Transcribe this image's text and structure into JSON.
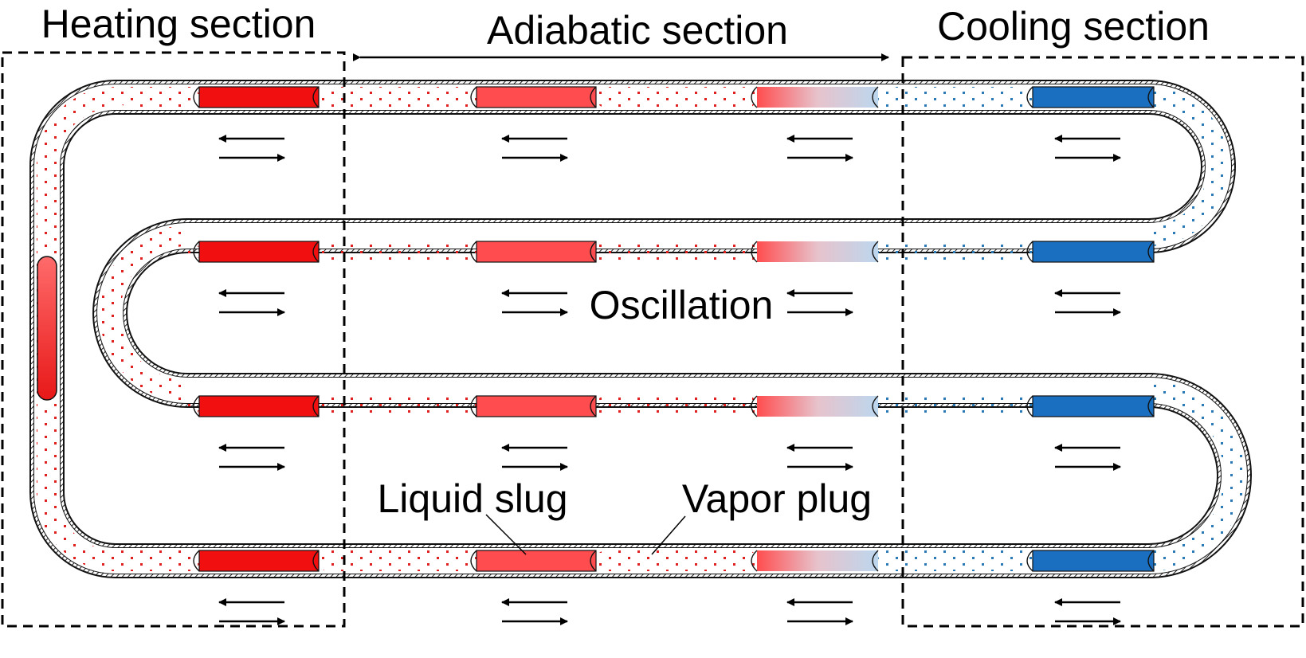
{
  "sections": {
    "heating": "Heating section",
    "adiabatic": "Adiabatic section",
    "cooling": "Cooling section"
  },
  "annotations": {
    "oscillation": "Oscillation",
    "liquid_slug": "Liquid slug",
    "vapor_plug": "Vapor plug"
  },
  "colors": {
    "hot_liquid": "#f20f10",
    "warm_liquid": "#ff4d4f",
    "cold_liquid": "#1a6fc0",
    "hot_dots": "#e02020",
    "cold_dots": "#2a7ab8",
    "transition_light": "#bcd7ee",
    "tube_wall": "#111111"
  }
}
